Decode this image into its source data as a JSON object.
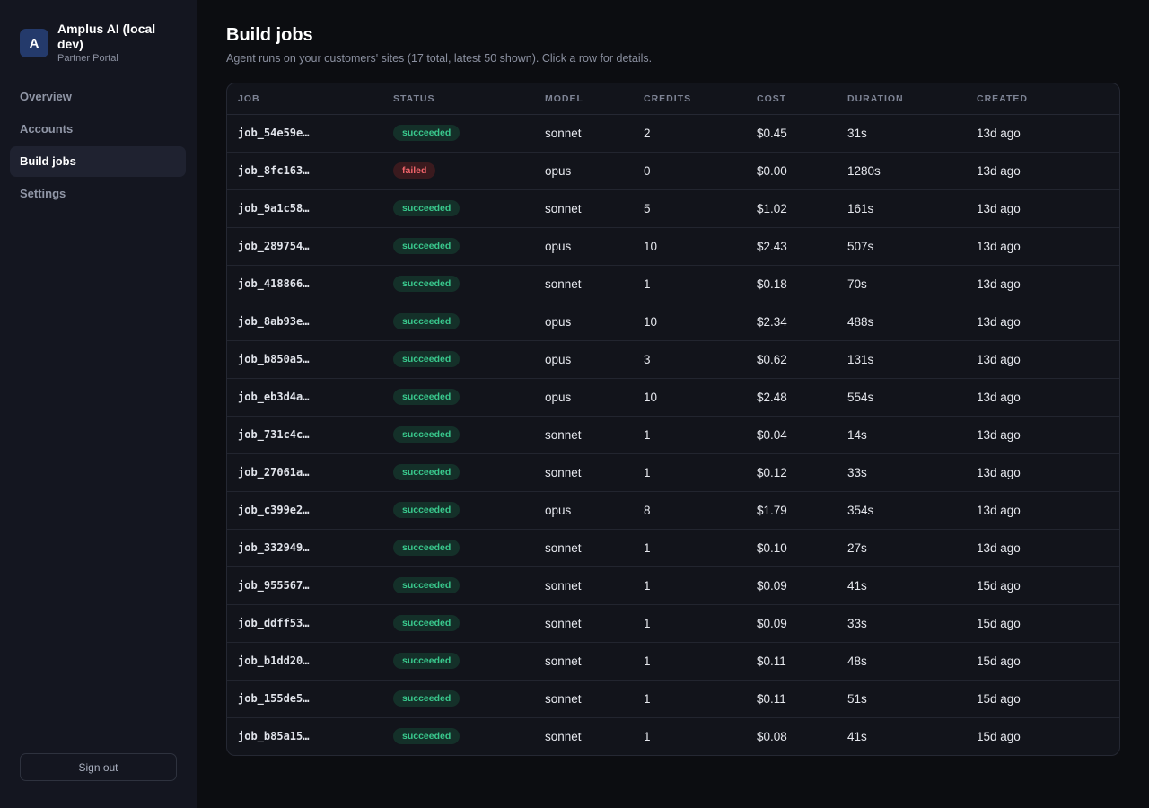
{
  "brand": {
    "initial": "A",
    "name": "Amplus AI (local dev)",
    "subtitle": "Partner Portal"
  },
  "nav": {
    "items": [
      {
        "label": "Overview"
      },
      {
        "label": "Accounts"
      },
      {
        "label": "Build jobs",
        "active": true
      },
      {
        "label": "Settings"
      }
    ],
    "signout_label": "Sign out"
  },
  "page": {
    "title": "Build jobs",
    "subtitle": "Agent runs on your customers' sites (17 total, latest 50 shown). Click a row for details."
  },
  "table": {
    "columns": [
      "JOB",
      "STATUS",
      "MODEL",
      "CREDITS",
      "COST",
      "DURATION",
      "CREATED"
    ],
    "rows": [
      {
        "job": "job_54e59e…",
        "status": "succeeded",
        "model": "sonnet",
        "credits": "2",
        "cost": "$0.45",
        "duration": "31s",
        "created": "13d ago"
      },
      {
        "job": "job_8fc163…",
        "status": "failed",
        "model": "opus",
        "credits": "0",
        "cost": "$0.00",
        "duration": "1280s",
        "created": "13d ago"
      },
      {
        "job": "job_9a1c58…",
        "status": "succeeded",
        "model": "sonnet",
        "credits": "5",
        "cost": "$1.02",
        "duration": "161s",
        "created": "13d ago"
      },
      {
        "job": "job_289754…",
        "status": "succeeded",
        "model": "opus",
        "credits": "10",
        "cost": "$2.43",
        "duration": "507s",
        "created": "13d ago"
      },
      {
        "job": "job_418866…",
        "status": "succeeded",
        "model": "sonnet",
        "credits": "1",
        "cost": "$0.18",
        "duration": "70s",
        "created": "13d ago"
      },
      {
        "job": "job_8ab93e…",
        "status": "succeeded",
        "model": "opus",
        "credits": "10",
        "cost": "$2.34",
        "duration": "488s",
        "created": "13d ago"
      },
      {
        "job": "job_b850a5…",
        "status": "succeeded",
        "model": "opus",
        "credits": "3",
        "cost": "$0.62",
        "duration": "131s",
        "created": "13d ago"
      },
      {
        "job": "job_eb3d4a…",
        "status": "succeeded",
        "model": "opus",
        "credits": "10",
        "cost": "$2.48",
        "duration": "554s",
        "created": "13d ago"
      },
      {
        "job": "job_731c4c…",
        "status": "succeeded",
        "model": "sonnet",
        "credits": "1",
        "cost": "$0.04",
        "duration": "14s",
        "created": "13d ago"
      },
      {
        "job": "job_27061a…",
        "status": "succeeded",
        "model": "sonnet",
        "credits": "1",
        "cost": "$0.12",
        "duration": "33s",
        "created": "13d ago"
      },
      {
        "job": "job_c399e2…",
        "status": "succeeded",
        "model": "opus",
        "credits": "8",
        "cost": "$1.79",
        "duration": "354s",
        "created": "13d ago"
      },
      {
        "job": "job_332949…",
        "status": "succeeded",
        "model": "sonnet",
        "credits": "1",
        "cost": "$0.10",
        "duration": "27s",
        "created": "13d ago"
      },
      {
        "job": "job_955567…",
        "status": "succeeded",
        "model": "sonnet",
        "credits": "1",
        "cost": "$0.09",
        "duration": "41s",
        "created": "15d ago"
      },
      {
        "job": "job_ddff53…",
        "status": "succeeded",
        "model": "sonnet",
        "credits": "1",
        "cost": "$0.09",
        "duration": "33s",
        "created": "15d ago"
      },
      {
        "job": "job_b1dd20…",
        "status": "succeeded",
        "model": "sonnet",
        "credits": "1",
        "cost": "$0.11",
        "duration": "48s",
        "created": "15d ago"
      },
      {
        "job": "job_155de5…",
        "status": "succeeded",
        "model": "sonnet",
        "credits": "1",
        "cost": "$0.11",
        "duration": "51s",
        "created": "15d ago"
      },
      {
        "job": "job_b85a15…",
        "status": "succeeded",
        "model": "sonnet",
        "credits": "1",
        "cost": "$0.08",
        "duration": "41s",
        "created": "15d ago"
      }
    ]
  }
}
